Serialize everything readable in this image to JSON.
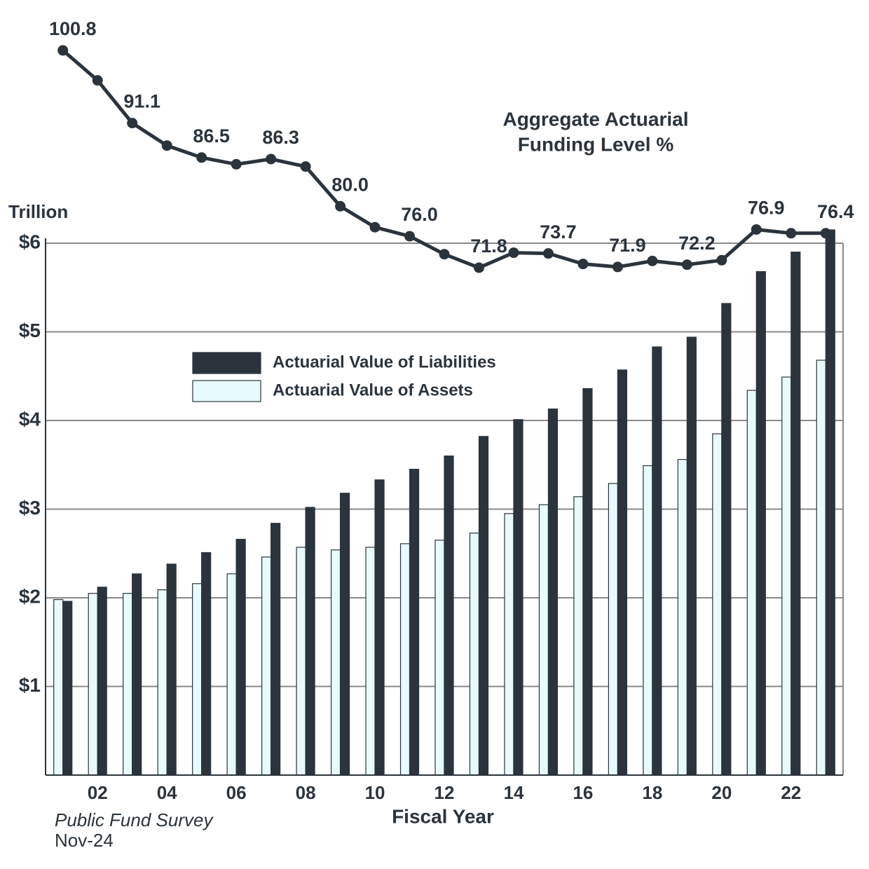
{
  "chart_data": {
    "type": "bar",
    "title": [
      "Aggregate Actuarial",
      "Funding Level %"
    ],
    "ylabel": "Trillion",
    "xlabel": "Fiscal Year",
    "source": [
      "Public Fund Survey",
      "Nov-24"
    ],
    "categories": [
      null,
      "02",
      null,
      "04",
      null,
      "06",
      null,
      "08",
      null,
      "10",
      null,
      "12",
      null,
      "14",
      null,
      "16",
      null,
      "18",
      null,
      "20",
      null,
      "22",
      null
    ],
    "series": [
      {
        "name": "Actuarial Value of Assets",
        "color": "#e8fbfc",
        "values": [
          1.98,
          2.05,
          2.05,
          2.09,
          2.16,
          2.27,
          2.46,
          2.57,
          2.54,
          2.57,
          2.61,
          2.65,
          2.73,
          2.95,
          3.05,
          3.14,
          3.29,
          3.49,
          3.56,
          3.85,
          4.34,
          4.49,
          4.68
        ]
      },
      {
        "name": "Actuarial Value of Liabilities",
        "color": "#2b343c",
        "values": [
          1.96,
          2.12,
          2.27,
          2.38,
          2.51,
          2.66,
          2.84,
          3.02,
          3.18,
          3.33,
          3.45,
          3.6,
          3.82,
          4.01,
          4.13,
          4.36,
          4.57,
          4.83,
          4.94,
          5.32,
          5.68,
          5.9,
          6.15
        ]
      },
      {
        "type": "line",
        "axis": "y2",
        "color": "#2b343c",
        "values": [
          100.8,
          96.8,
          91.1,
          88.1,
          86.5,
          85.6,
          86.3,
          85.3,
          80.0,
          77.2,
          76.0,
          73.6,
          71.8,
          73.8,
          73.7,
          72.3,
          71.9,
          72.7,
          72.2,
          72.8,
          76.9,
          76.4,
          76.4
        ],
        "value_labels": [
          "100.8",
          null,
          "91.1",
          null,
          "86.5",
          null,
          "86.3",
          null,
          "80.0",
          null,
          "76.0",
          null,
          "71.8",
          null,
          "73.7",
          null,
          "71.9",
          null,
          "72.2",
          null,
          "76.9",
          null,
          "76.4"
        ]
      }
    ],
    "ylim": [
      0,
      6
    ],
    "yticks": [
      {
        "value": 1,
        "label": "$1"
      },
      {
        "value": 2,
        "label": "$2"
      },
      {
        "value": 3,
        "label": "$3"
      },
      {
        "value": 4,
        "label": "$4"
      },
      {
        "value": 5,
        "label": "$5"
      },
      {
        "value": 6,
        "label": "$6"
      }
    ],
    "y2lim": [
      40,
      105
    ],
    "grid": true
  }
}
